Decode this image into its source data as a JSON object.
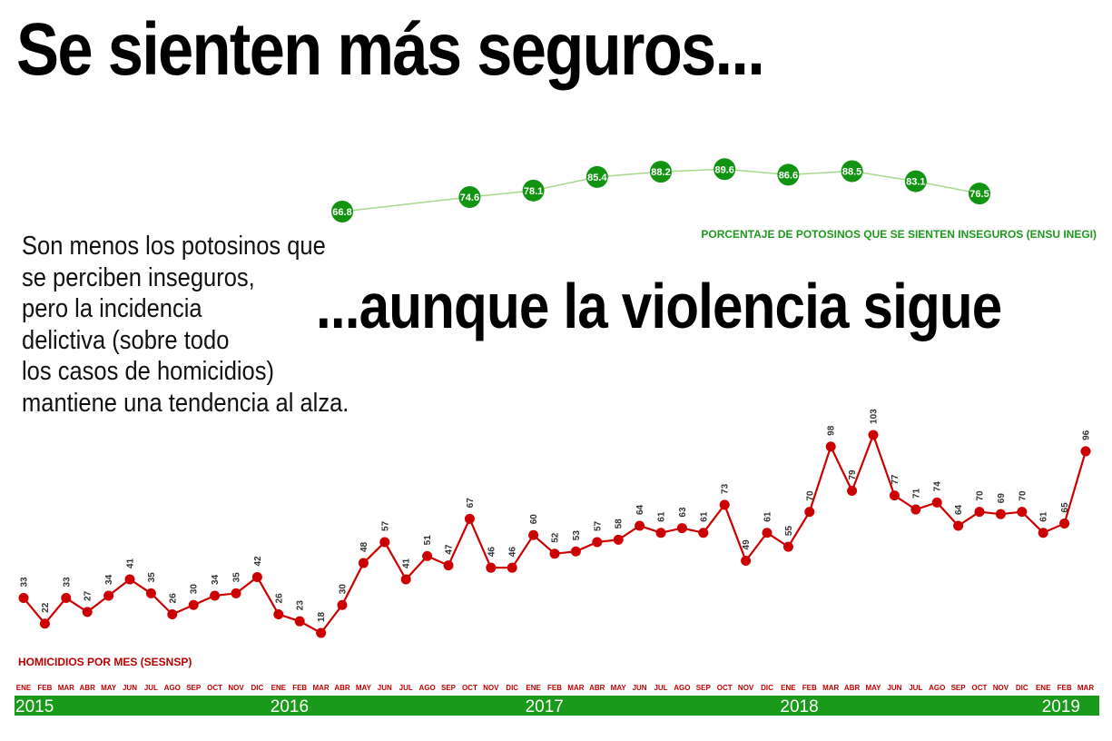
{
  "headline_top": "Se sienten más seguros...",
  "headline_bottom": "...aunque la violencia sigue",
  "intro_lines": [
    "Son menos los potosinos que",
    "se perciben inseguros,",
    "pero la incidencia",
    "delictiva (sobre todo",
    "los casos de homicidios)",
    "mantiene una tendencia al alza."
  ],
  "colors": {
    "green_marker": "#129412",
    "green_line": "#a6d88a",
    "green_caption": "#1e9a1e",
    "red": "#cc0000",
    "year_band": "#1a9a1a"
  },
  "chart_data": [
    {
      "type": "line",
      "xlabel": "",
      "ylabel": "",
      "legend": "PORCENTAJE DE POTOSINOS QUE SE SIENTEN INSEGUROS (ENSU INEGI)",
      "x_month_index": [
        15,
        21,
        24,
        27,
        30,
        33,
        36,
        39,
        42,
        45
      ],
      "values": [
        66.8,
        74.6,
        78.1,
        85.4,
        88.2,
        89.6,
        86.6,
        88.5,
        83.1,
        76.5
      ],
      "labels": [
        "66.8",
        "74.6",
        "78.1",
        "85.4",
        "88.2",
        "89.6",
        "86.6",
        "88.5",
        "83.1",
        "76.5"
      ],
      "ylim": [
        60,
        95
      ]
    },
    {
      "type": "line",
      "xlabel": "",
      "ylabel": "",
      "legend": "HOMICIDIOS POR MES (SESNSP)",
      "categories": [
        "ENE",
        "FEB",
        "MAR",
        "ABR",
        "MAY",
        "JUN",
        "JUL",
        "AGO",
        "SEP",
        "OCT",
        "NOV",
        "DIC",
        "ENE",
        "FEB",
        "MAR",
        "ABR",
        "MAY",
        "JUN",
        "JUL",
        "AGO",
        "SEP",
        "OCT",
        "NOV",
        "DIC",
        "ENE",
        "FEB",
        "MAR",
        "ABR",
        "MAY",
        "JUN",
        "JUL",
        "AGO",
        "SEP",
        "OCT",
        "NOV",
        "DIC",
        "ENE",
        "FEB",
        "MAR",
        "ABR",
        "MAY",
        "JUN",
        "JUL",
        "AGO",
        "SEP",
        "OCT",
        "NOV",
        "DIC",
        "ENE",
        "FEB",
        "MAR"
      ],
      "years": [
        {
          "label": "2015",
          "start_index": 0
        },
        {
          "label": "2016",
          "start_index": 12
        },
        {
          "label": "2017",
          "start_index": 24
        },
        {
          "label": "2018",
          "start_index": 36
        },
        {
          "label": "2019",
          "start_index": 48
        }
      ],
      "values": [
        33,
        22,
        33,
        27,
        34,
        41,
        35,
        26,
        30,
        34,
        35,
        42,
        26,
        23,
        18,
        30,
        48,
        57,
        41,
        51,
        47,
        67,
        46,
        46,
        60,
        52,
        53,
        57,
        58,
        64,
        61,
        63,
        61,
        73,
        49,
        61,
        55,
        70,
        98,
        79,
        103,
        77,
        71,
        74,
        64,
        70,
        69,
        70,
        61,
        65,
        96
      ],
      "ylim": [
        0,
        110
      ]
    }
  ]
}
